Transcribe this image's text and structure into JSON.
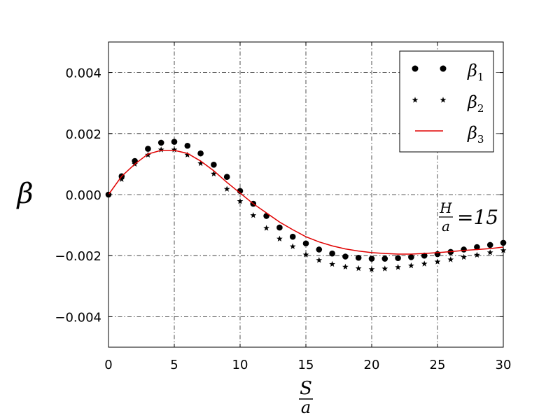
{
  "chart_data": {
    "type": "scatter",
    "title": "",
    "xlabel": {
      "numerator": "S",
      "denominator": "a"
    },
    "ylabel": "β",
    "xlim": [
      0,
      30
    ],
    "ylim": [
      -0.005,
      0.005
    ],
    "x_ticks": [
      0,
      5,
      10,
      15,
      20,
      25,
      30
    ],
    "x_tick_labels": [
      "0",
      "5",
      "10",
      "15",
      "20",
      "25",
      "30"
    ],
    "y_ticks": [
      0.004,
      0.002,
      0.0,
      -0.002,
      -0.004
    ],
    "y_tick_labels": [
      "0.004",
      "0.002",
      "0.000",
      "−0.002",
      "−0.004"
    ],
    "grid": true,
    "legend_position": "top-right",
    "annotation": {
      "numerator": "H",
      "denominator": "a",
      "text": "=15"
    },
    "series": [
      {
        "name": "β1",
        "name_base": "β",
        "name_sub": "1",
        "style": "markers",
        "marker": "circle",
        "color": "#000000",
        "x": [
          0,
          1,
          2,
          3,
          4,
          5,
          6,
          7,
          8,
          9,
          10,
          11,
          12,
          13,
          14,
          15,
          16,
          17,
          18,
          19,
          20,
          21,
          22,
          23,
          24,
          25,
          26,
          27,
          28,
          29,
          30
        ],
        "y": [
          0.0,
          0.0006,
          0.0011,
          0.0015,
          0.0017,
          0.00173,
          0.0016,
          0.00135,
          0.00098,
          0.00058,
          0.00012,
          -0.0003,
          -0.0007,
          -0.00108,
          -0.00138,
          -0.0016,
          -0.0018,
          -0.00193,
          -0.00203,
          -0.00207,
          -0.0021,
          -0.0021,
          -0.00208,
          -0.00205,
          -0.002,
          -0.00195,
          -0.00188,
          -0.0018,
          -0.00172,
          -0.00165,
          -0.00158
        ]
      },
      {
        "name": "β2",
        "name_base": "β",
        "name_sub": "2",
        "style": "markers",
        "marker": "star",
        "color": "#000000",
        "x": [
          0,
          1,
          2,
          3,
          4,
          5,
          6,
          7,
          8,
          9,
          10,
          11,
          12,
          13,
          14,
          15,
          16,
          17,
          18,
          19,
          20,
          21,
          22,
          23,
          24,
          25,
          26,
          27,
          28,
          29,
          30
        ],
        "y": [
          0.0,
          0.0005,
          0.001,
          0.0013,
          0.00147,
          0.00147,
          0.0013,
          0.00102,
          0.00068,
          0.00018,
          -0.00022,
          -0.00068,
          -0.0011,
          -0.00145,
          -0.0017,
          -0.00197,
          -0.00215,
          -0.00228,
          -0.00237,
          -0.00242,
          -0.00245,
          -0.00243,
          -0.00238,
          -0.00233,
          -0.00227,
          -0.0022,
          -0.00213,
          -0.00205,
          -0.00198,
          -0.0019,
          -0.00183
        ]
      },
      {
        "name": "β3",
        "name_base": "β",
        "name_sub": "3",
        "style": "line",
        "color": "#e00000",
        "x": [
          0,
          1,
          2,
          3,
          4,
          5,
          6,
          7,
          8,
          9,
          10,
          11,
          12,
          13,
          14,
          15,
          16,
          17,
          18,
          19,
          20,
          21,
          22,
          23,
          24,
          25,
          26,
          27,
          28,
          29,
          30
        ],
        "y": [
          0.0,
          0.0006,
          0.001,
          0.00133,
          0.00145,
          0.00145,
          0.00135,
          0.0011,
          0.00078,
          0.0004,
          5e-05,
          -0.0003,
          -0.0006,
          -0.0009,
          -0.00115,
          -0.00138,
          -0.00155,
          -0.00168,
          -0.00178,
          -0.00185,
          -0.0019,
          -0.00193,
          -0.00195,
          -0.00195,
          -0.00193,
          -0.0019,
          -0.00187,
          -0.00183,
          -0.0018,
          -0.00177,
          -0.00172
        ]
      }
    ]
  }
}
